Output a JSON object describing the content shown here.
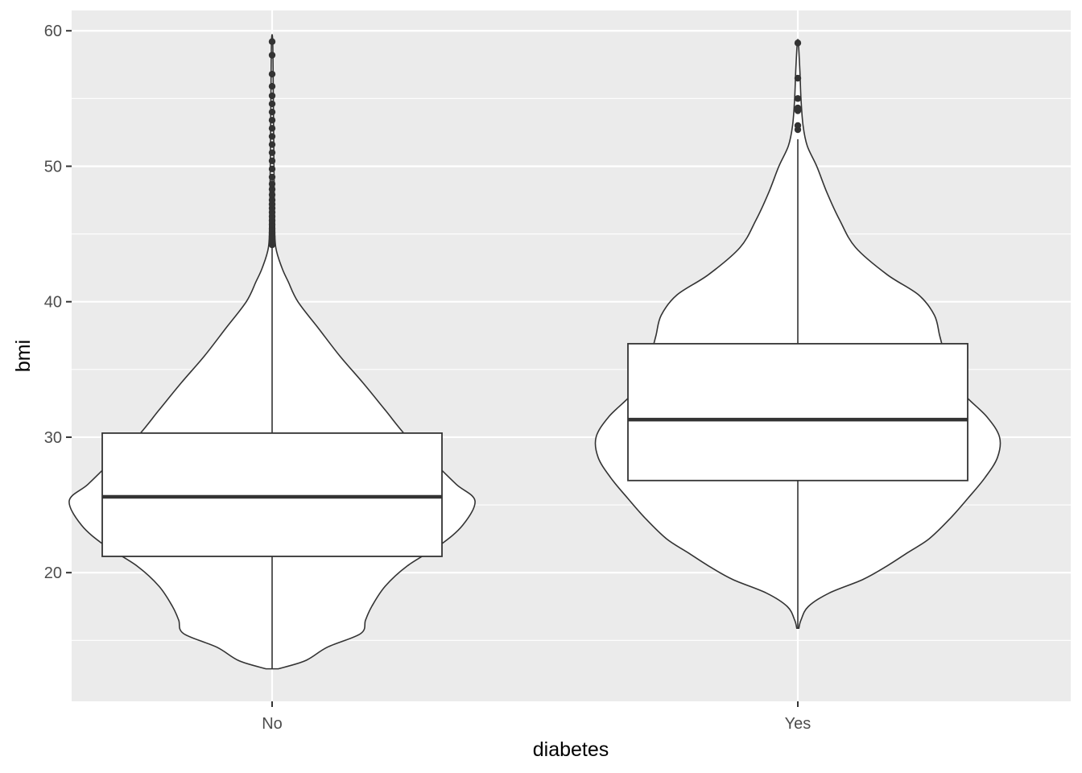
{
  "chart_data": {
    "type": "violin+boxplot",
    "xlabel": "diabetes",
    "ylabel": "bmi",
    "categories": [
      "No",
      "Yes"
    ],
    "ylim": [
      10.5,
      61.5
    ],
    "yticks": [
      20,
      30,
      40,
      50,
      60
    ],
    "grid": true,
    "colors": {
      "panel": "#ebebeb",
      "grid": "#ffffff",
      "fill": "#ffffff",
      "stroke": "#333333",
      "tick_text": "#4d4d4d"
    },
    "groups": [
      {
        "category": "No",
        "violin_ymin": 12.9,
        "violin_ymax": 59.2,
        "violin_profile": [
          [
            12.9,
            0.05
          ],
          [
            13.5,
            0.27
          ],
          [
            14.5,
            0.45
          ],
          [
            15.5,
            0.72
          ],
          [
            16.5,
            0.76
          ],
          [
            17.5,
            0.81
          ],
          [
            19.0,
            0.92
          ],
          [
            20.5,
            1.1
          ],
          [
            22.0,
            1.36
          ],
          [
            23.5,
            1.55
          ],
          [
            25.3,
            1.65
          ],
          [
            26.5,
            1.5
          ],
          [
            28.0,
            1.33
          ],
          [
            30.0,
            1.1
          ],
          [
            32.0,
            0.92
          ],
          [
            34.0,
            0.74
          ],
          [
            36.0,
            0.55
          ],
          [
            38.0,
            0.38
          ],
          [
            40.0,
            0.21
          ],
          [
            41.5,
            0.13
          ],
          [
            42.5,
            0.08
          ],
          [
            44.0,
            0.03
          ],
          [
            46.0,
            0.02
          ],
          [
            50.0,
            0.015
          ],
          [
            55.0,
            0.01
          ],
          [
            59.2,
            0.005
          ]
        ],
        "box": {
          "q1": 21.2,
          "median": 25.6,
          "q3": 30.3,
          "whisker_low": 12.9,
          "whisker_high": 44.0
        },
        "outliers": [
          44.2,
          44.5,
          44.8,
          45.1,
          45.4,
          45.7,
          46.0,
          46.3,
          46.6,
          46.9,
          47.2,
          47.5,
          47.9,
          48.3,
          48.7,
          49.2,
          49.8,
          50.4,
          51.0,
          51.6,
          52.2,
          52.8,
          53.4,
          54.0,
          54.6,
          55.2,
          55.9,
          56.8,
          58.2,
          59.2
        ]
      },
      {
        "category": "Yes",
        "violin_ymin": 15.9,
        "violin_ymax": 59.1,
        "violin_profile": [
          [
            15.9,
            0.01
          ],
          [
            16.5,
            0.03
          ],
          [
            17.5,
            0.1
          ],
          [
            18.5,
            0.3
          ],
          [
            19.5,
            0.62
          ],
          [
            20.5,
            0.85
          ],
          [
            21.5,
            1.05
          ],
          [
            22.5,
            1.25
          ],
          [
            24.0,
            1.45
          ],
          [
            25.5,
            1.62
          ],
          [
            27.0,
            1.78
          ],
          [
            28.5,
            1.9
          ],
          [
            30.0,
            1.92
          ],
          [
            31.5,
            1.8
          ],
          [
            33.0,
            1.6
          ],
          [
            34.5,
            1.45
          ],
          [
            36.0,
            1.4
          ],
          [
            37.5,
            1.35
          ],
          [
            39.0,
            1.3
          ],
          [
            40.5,
            1.15
          ],
          [
            42.0,
            0.85
          ],
          [
            44.0,
            0.55
          ],
          [
            46.0,
            0.4
          ],
          [
            48.0,
            0.28
          ],
          [
            50.0,
            0.18
          ],
          [
            51.5,
            0.09
          ],
          [
            53.0,
            0.05
          ],
          [
            55.0,
            0.03
          ],
          [
            57.0,
            0.02
          ],
          [
            59.1,
            0.005
          ]
        ],
        "box": {
          "q1": 26.8,
          "median": 31.3,
          "q3": 36.9,
          "whisker_low": 15.9,
          "whisker_high": 52.0
        },
        "outliers": [
          52.7,
          53.0,
          54.1,
          54.3,
          55.0,
          56.5,
          59.1
        ]
      }
    ]
  }
}
